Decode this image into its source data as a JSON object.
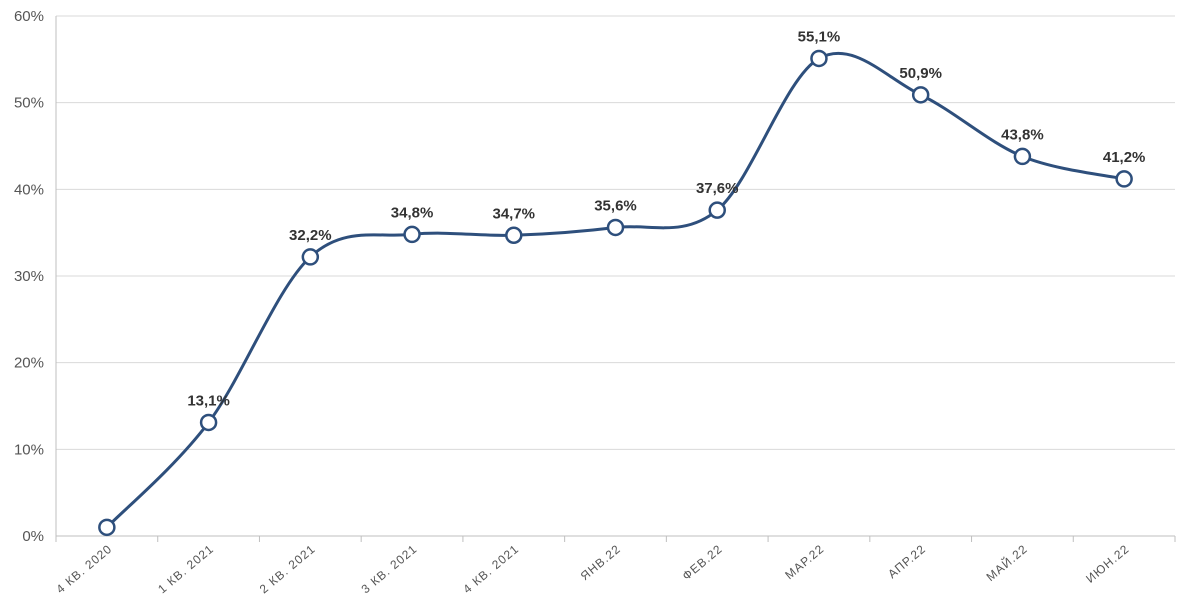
{
  "chart_data": {
    "type": "line",
    "title": "",
    "xlabel": "",
    "ylabel": "",
    "categories": [
      "4 КВ. 2020",
      "1 КВ. 2021",
      "2 КВ. 2021",
      "3 КВ. 2021",
      "4 КВ. 2021",
      "ЯНВ.22",
      "ФЕВ.22",
      "МАР.22",
      "АПР.22",
      "МАЙ.22",
      "ИЮН.22"
    ],
    "values": [
      1.0,
      13.1,
      32.2,
      34.8,
      34.7,
      35.6,
      37.6,
      55.1,
      50.9,
      43.8,
      41.2
    ],
    "data_labels": [
      "",
      "13,1%",
      "32,2%",
      "34,8%",
      "34,7%",
      "35,6%",
      "37,6%",
      "55,1%",
      "50,9%",
      "43,8%",
      "41,2%"
    ],
    "ylim": [
      0,
      60
    ],
    "yticks": [
      0,
      10,
      20,
      30,
      40,
      50,
      60
    ],
    "ytick_labels": [
      "0%",
      "10%",
      "20%",
      "30%",
      "40%",
      "50%",
      "60%"
    ],
    "grid": true,
    "legend": "none",
    "colors": {
      "line": "#2e4f7c",
      "marker_fill": "#ffffff",
      "grid": "#d9d9d9",
      "axis": "#bfbfbf"
    }
  }
}
